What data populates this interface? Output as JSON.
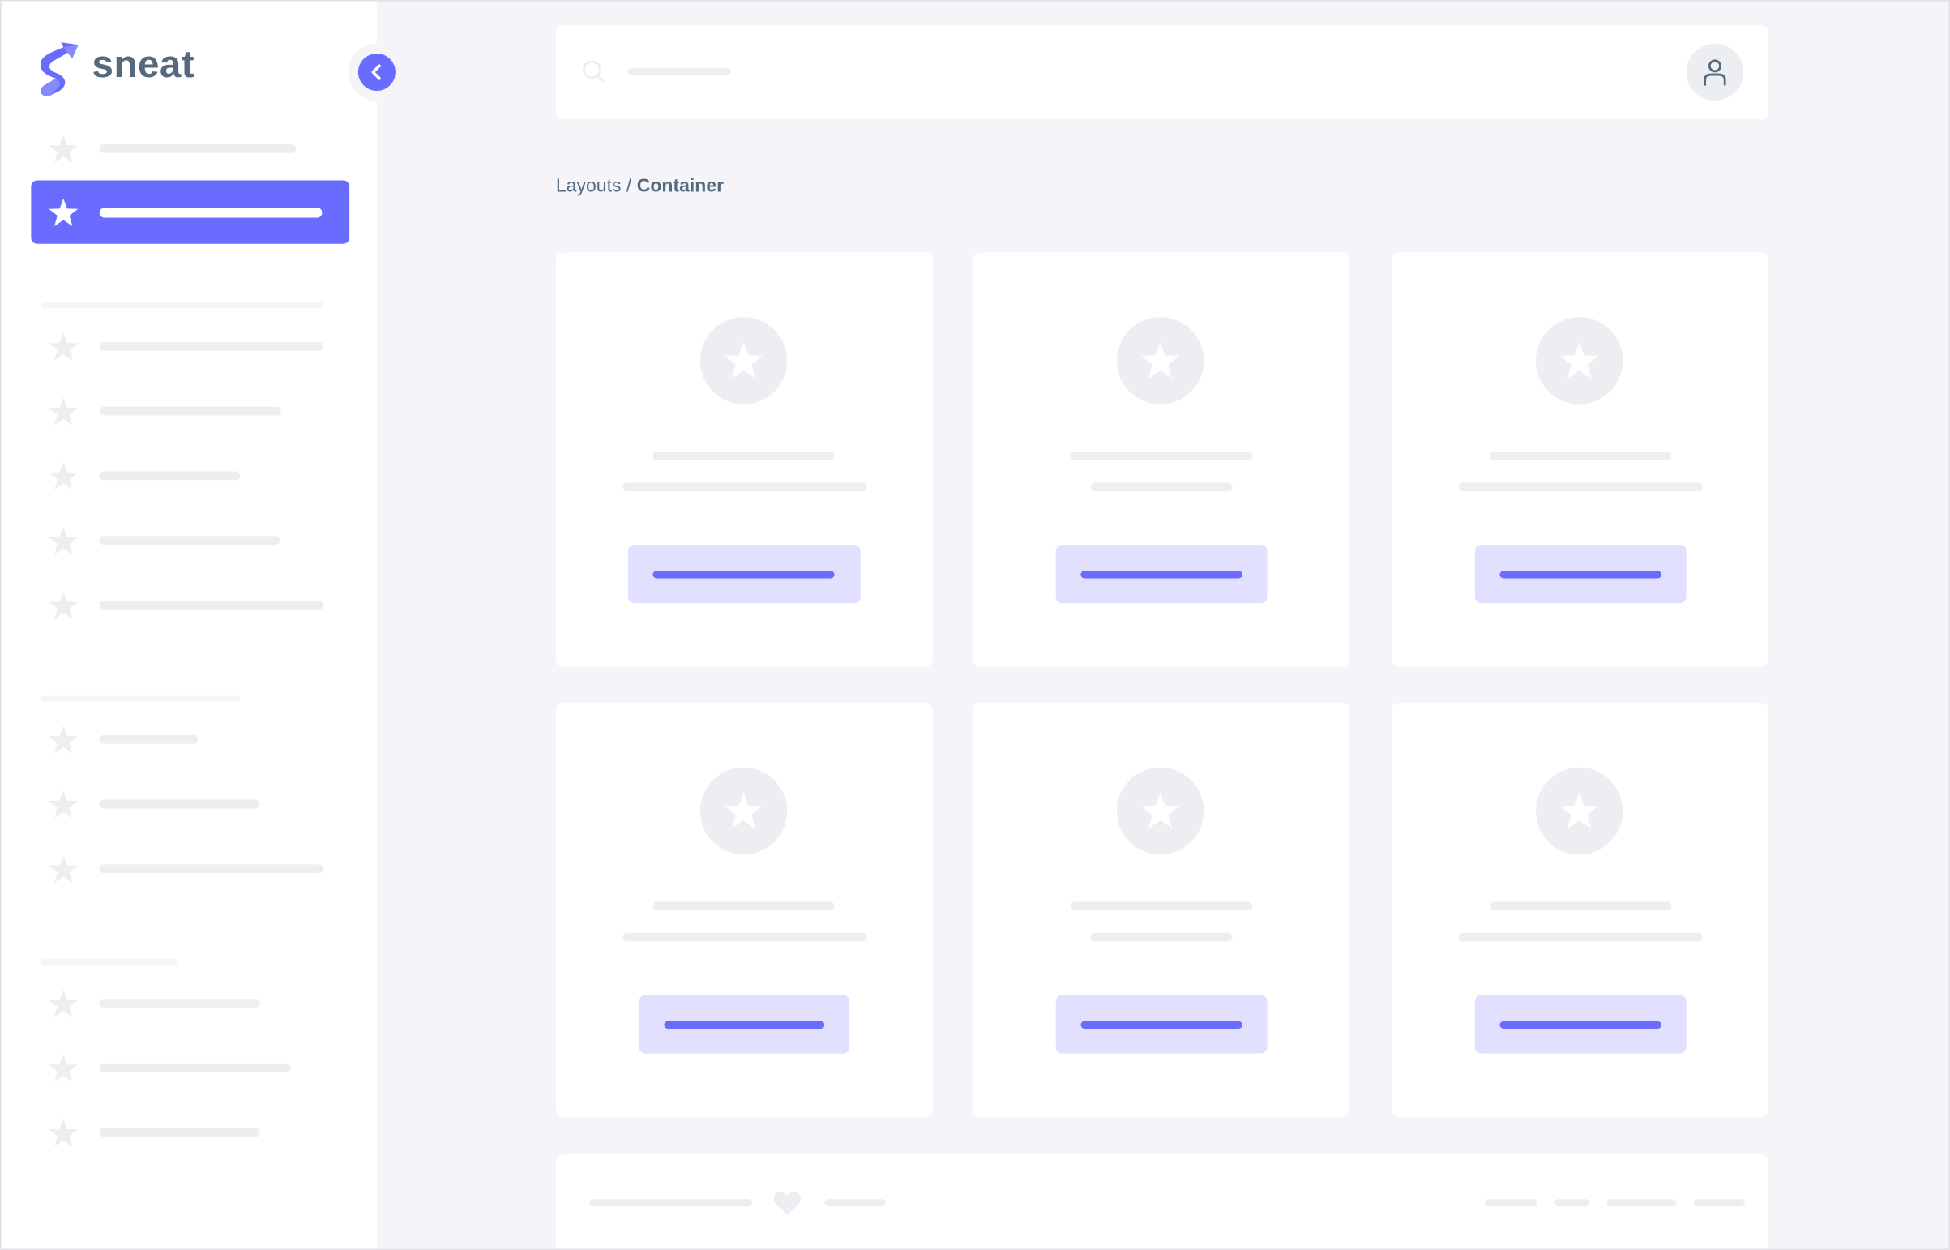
{
  "brand": {
    "name": "sneat",
    "accent": "#696cff",
    "text_color": "#566a7f"
  },
  "breadcrumb": {
    "parent": "Layouts",
    "separator": " / ",
    "current": "Container"
  },
  "icons": {
    "logo": "sneat-logo-icon",
    "collapse": "chevron-left-icon",
    "menu": "star-icon",
    "search": "search-icon",
    "avatar": "user-icon",
    "card": "star-icon",
    "footer": "heart-icon"
  }
}
